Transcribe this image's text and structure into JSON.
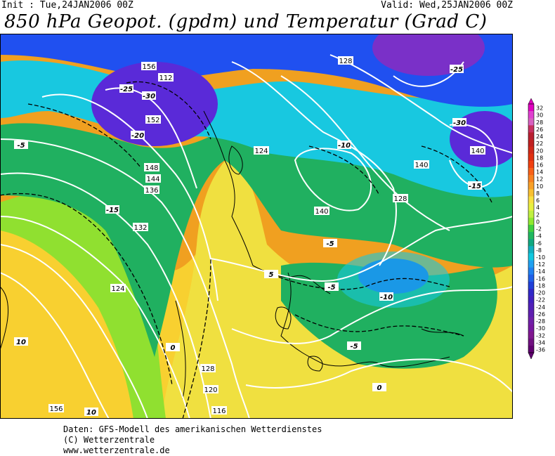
{
  "header": {
    "init": "Init : Tue,24JAN2006 00Z",
    "valid": "Valid: Wed,25JAN2006 00Z",
    "title": "850 hPa Geopot. (gpdm) und Temperatur (Grad C)"
  },
  "map": {
    "geopotential_labels": [
      "156",
      "152",
      "148",
      "144",
      "140",
      "136",
      "132",
      "128",
      "124",
      "120",
      "116",
      "112"
    ],
    "temperature_labels": [
      "10",
      "5",
      "0",
      "-5",
      "-10",
      "-15",
      "-20",
      "-25",
      "-30"
    ],
    "map_colors": {
      "very_cold": "#5a2ad8",
      "cold": "#2050f0",
      "cool": "#18c8e0",
      "mild": "#20b060",
      "neutral": "#90e030",
      "warm": "#f0e040",
      "hot": "#f0a020"
    }
  },
  "colorbar": {
    "ticks": [
      "32",
      "30",
      "28",
      "26",
      "24",
      "22",
      "20",
      "18",
      "16",
      "14",
      "12",
      "10",
      "8",
      "6",
      "4",
      "2",
      "0",
      "-2",
      "-4",
      "-6",
      "-8",
      "-10",
      "-12",
      "-14",
      "-16",
      "-18",
      "-20",
      "-22",
      "-24",
      "-26",
      "-28",
      "-30",
      "-32",
      "-34",
      "-36"
    ],
    "colors": [
      "#e000c0",
      "#e040d0",
      "#d860c0",
      "#c83060",
      "#b82030",
      "#c02020",
      "#d02818",
      "#e03010",
      "#f04010",
      "#f86018",
      "#f88020",
      "#f8a028",
      "#f8c030",
      "#f8e040",
      "#e8f040",
      "#c0f040",
      "#90e830",
      "#40d040",
      "#20b860",
      "#10a880",
      "#10b0c0",
      "#10c8e0",
      "#20a0f0",
      "#2080f0",
      "#2060e8",
      "#2040d8",
      "#3028c8",
      "#4020c0",
      "#5020b8",
      "#6020b0",
      "#7020a8",
      "#7818a0",
      "#801890",
      "#701080",
      "#600070"
    ]
  },
  "footer": {
    "line1": "Daten: GFS-Modell des amerikanischen Wetterdienstes",
    "line2": "(C) Wetterzentrale",
    "line3": "www.wetterzentrale.de"
  }
}
